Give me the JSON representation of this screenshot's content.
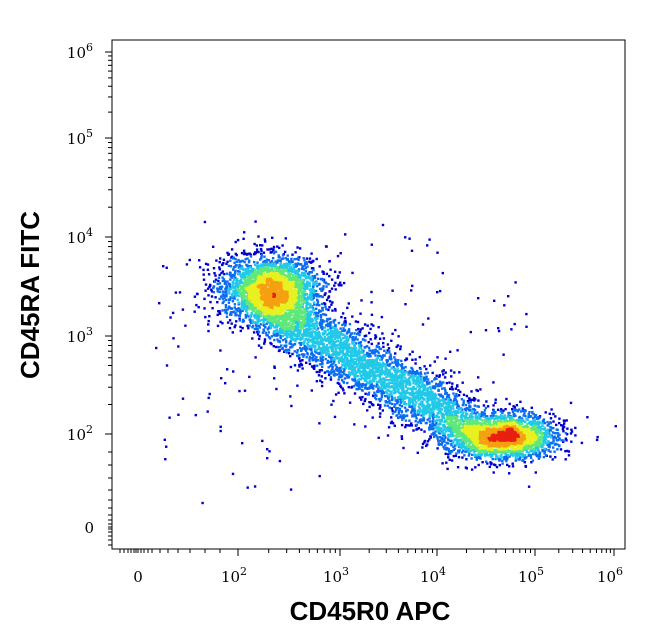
{
  "chart_data": {
    "type": "scatter",
    "style": "flow-cytometry pseudocolor density dot plot",
    "xlabel": "CD45R0 APC",
    "ylabel": "CD45RA FITC",
    "x_scale": "biexponential (linear near 0, log above ~10^2)",
    "y_scale": "biexponential (linear near 0, log above ~10^2)",
    "xlim": [
      0,
      1000000
    ],
    "ylim": [
      0,
      1000000
    ],
    "grid": false,
    "legend": "none",
    "x_ticks": [
      {
        "base": "0",
        "exp": ""
      },
      {
        "base": "10",
        "exp": "2"
      },
      {
        "base": "10",
        "exp": "3"
      },
      {
        "base": "10",
        "exp": "4"
      },
      {
        "base": "10",
        "exp": "5"
      },
      {
        "base": "10",
        "exp": "6"
      }
    ],
    "y_ticks": [
      {
        "base": "0",
        "exp": ""
      },
      {
        "base": "10",
        "exp": "2"
      },
      {
        "base": "10",
        "exp": "3"
      },
      {
        "base": "10",
        "exp": "4"
      },
      {
        "base": "10",
        "exp": "5"
      },
      {
        "base": "10",
        "exp": "6"
      }
    ],
    "density_colors": [
      "#0000cc",
      "#0a6cf0",
      "#22c8e8",
      "#5fe87a",
      "#e8f020",
      "#f5a010",
      "#e82010"
    ],
    "populations": [
      {
        "name": "CD45RA+ CD45R0- cluster",
        "x_center": 200,
        "y_center": 3000,
        "density": "high"
      },
      {
        "name": "transitional band",
        "x_center": 3000,
        "y_center": 500,
        "density": "medium"
      },
      {
        "name": "CD45RA- CD45R0+ cluster",
        "x_center": 60000,
        "y_center": 100,
        "density": "high"
      }
    ]
  }
}
